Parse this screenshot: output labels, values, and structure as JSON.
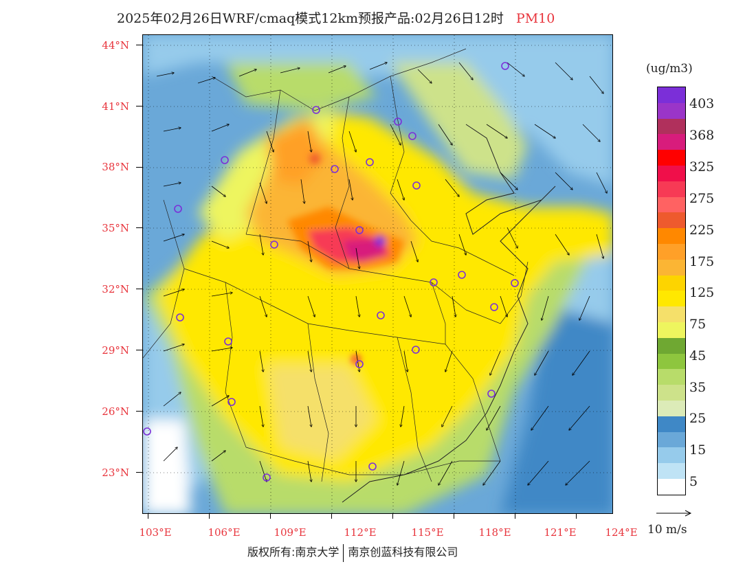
{
  "title": {
    "main": "2025年02月26日WRF/cmaq模式12km预报产品:02月26日12时",
    "variable": "PM10"
  },
  "map": {
    "lat_labels": [
      "44°N",
      "41°N",
      "38°N",
      "35°N",
      "32°N",
      "29°N",
      "26°N",
      "23°N"
    ],
    "lon_labels": [
      "103°E",
      "106°E",
      "109°E",
      "112°E",
      "115°E",
      "118°E",
      "121°E",
      "124°E"
    ],
    "extent": {
      "lon": [
        102.8,
        124
      ],
      "lat": [
        21.9,
        44.5
      ]
    }
  },
  "legend": {
    "unit": "(ug/m3)",
    "labels": [
      "403",
      "368",
      "325",
      "275",
      "225",
      "175",
      "125",
      "75",
      "45",
      "35",
      "25",
      "15",
      "5"
    ],
    "colors": [
      "#7b2fd8",
      "#9a35c8",
      "#b0305c",
      "#d81c7c",
      "#ff0000",
      "#f00f4a",
      "#f73a55",
      "#ff6262",
      "#ee5a2e",
      "#ff8800",
      "#ffa028",
      "#fbb534",
      "#fdd400",
      "#ffe800",
      "#f5e06a",
      "#eef55e",
      "#6fa832",
      "#8ec63e",
      "#b8dc6a",
      "#cde28a",
      "#dcebb8",
      "#3f88c6",
      "#6aa8d8",
      "#96cbeb",
      "#bfe3f5",
      "#ffffff"
    ]
  },
  "wind_reference": {
    "label": "10 m/s"
  },
  "footer": {
    "copyright_left": "版权所有:南京大学",
    "copyright_right": "南京创蓝科技有限公司"
  }
}
